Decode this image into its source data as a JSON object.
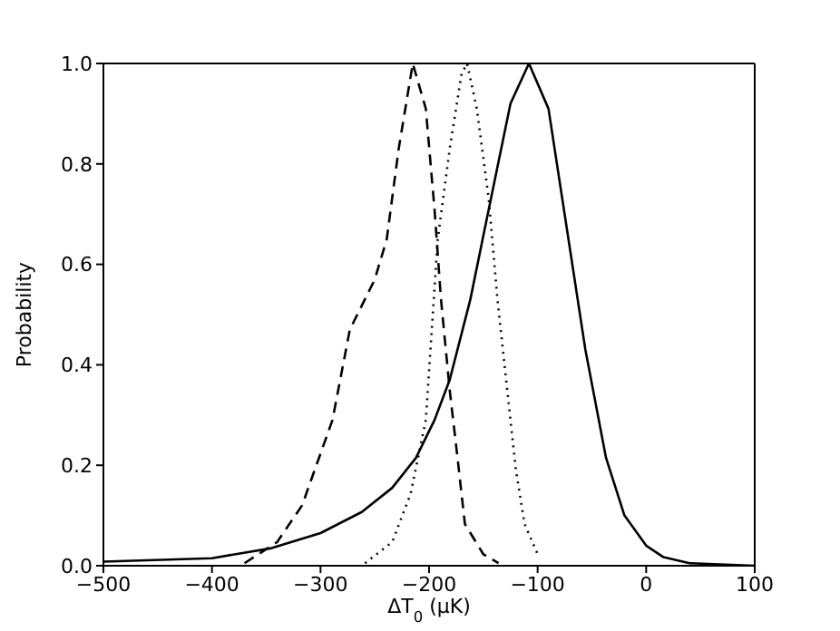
{
  "chart_data": {
    "type": "line",
    "xlabel": "ΔT$_{0}$ (μK)",
    "ylabel": "Probability",
    "series": [
      {
        "color": "#000000",
        "line_style": "solid",
        "x": [
          -500,
          -400,
          -345,
          -300,
          -262,
          -234,
          -212,
          -195,
          -181,
          -162,
          -145,
          -125,
          -108,
          -90,
          -56,
          -37,
          -20,
          0,
          16,
          40,
          100
        ],
        "values": [
          0.008,
          0.015,
          0.035,
          0.065,
          0.107,
          0.155,
          0.215,
          0.29,
          0.37,
          0.53,
          0.71,
          0.92,
          1.0,
          0.91,
          0.43,
          0.215,
          0.1,
          0.04,
          0.017,
          0.005,
          0.0
        ]
      },
      {
        "color": "#000000",
        "line_style": "dashed",
        "x": [
          -370,
          -340,
          -317,
          -289,
          -273,
          -250,
          -239,
          -228,
          -215,
          -203,
          -195,
          -189,
          -181,
          -173,
          -167,
          -150,
          -136
        ],
        "values": [
          0.005,
          0.047,
          0.12,
          0.29,
          0.47,
          0.57,
          0.65,
          0.83,
          1.0,
          0.91,
          0.71,
          0.53,
          0.35,
          0.2,
          0.083,
          0.023,
          0.005
        ]
      },
      {
        "color": "#000000",
        "line_style": "dotted",
        "x": [
          -259,
          -234,
          -217,
          -203,
          -192,
          -181,
          -170,
          -165,
          -156,
          -145,
          -137,
          -128,
          -120,
          -112,
          -100
        ],
        "values": [
          0.005,
          0.047,
          0.143,
          0.29,
          0.65,
          0.83,
          0.98,
          1.0,
          0.91,
          0.73,
          0.53,
          0.35,
          0.19,
          0.083,
          0.023
        ]
      }
    ],
    "xlim": [
      -500,
      100
    ],
    "xticks": [
      -500,
      -400,
      -300,
      -200,
      -100,
      0,
      100
    ],
    "ylim": [
      0,
      1
    ],
    "yticks": [
      {
        "value": 0,
        "label": "0.0"
      },
      {
        "value": 0.2,
        "label": "0.2"
      },
      {
        "value": 0.4,
        "label": "0.4"
      },
      {
        "value": 0.6,
        "label": "0.6"
      },
      {
        "value": 0.8,
        "label": "0.8"
      },
      {
        "value": 1,
        "label": "1.0"
      }
    ],
    "grid": false,
    "legend": false,
    "marker": "none"
  }
}
